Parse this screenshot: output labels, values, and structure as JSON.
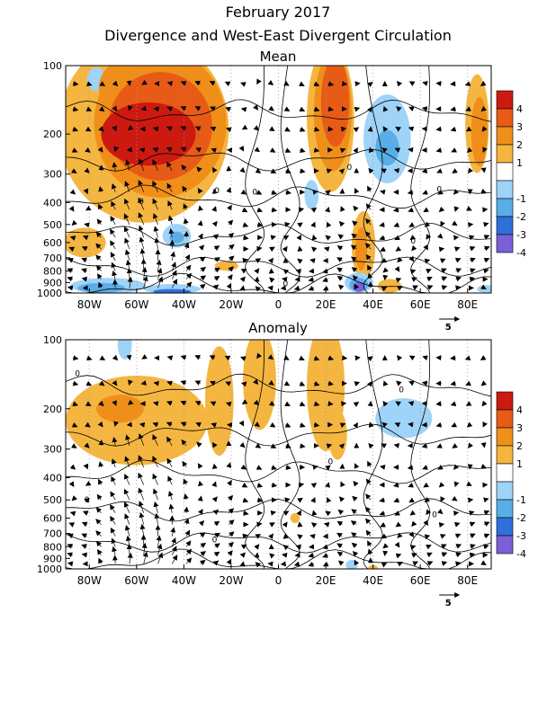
{
  "title": "February 2017",
  "subtitle": "Divergence and West-East Divergent Circulation",
  "colors": {
    "pos1": "#f4b640",
    "pos2": "#ef8f1a",
    "pos3": "#e75b17",
    "pos4": "#cc1a10",
    "neg1": "#9fd3f7",
    "neg2": "#5aaee8",
    "neg3": "#2f6fdc",
    "neg4": "#7b5fd8",
    "contour": "#000000",
    "arrow": "#000000",
    "grid": "#999999"
  },
  "chart_data": [
    {
      "type": "heatmap",
      "title": "Mean",
      "xlabel": "",
      "ylabel": "",
      "x_ticks": [
        "80W",
        "60W",
        "40W",
        "20W",
        "0",
        "20E",
        "40E",
        "60E",
        "80E"
      ],
      "x_tick_values": [
        -80,
        -60,
        -40,
        -20,
        0,
        20,
        40,
        60,
        80
      ],
      "xlim": [
        -90,
        90
      ],
      "y_ticks": [
        "100",
        "200",
        "300",
        "400",
        "500",
        "600",
        "700",
        "800",
        "900",
        "1000"
      ],
      "y_tick_values": [
        100,
        200,
        300,
        400,
        500,
        600,
        700,
        800,
        900,
        1000
      ],
      "ylim": [
        1000,
        100
      ],
      "y_scale": "log",
      "legend_labels": [
        "4",
        "3",
        "2",
        "1",
        "-1",
        "-2",
        "-3",
        "-4"
      ],
      "contour_labels": [
        {
          "text": "0",
          "x": -58,
          "p": 395
        },
        {
          "text": "0",
          "x": -26,
          "p": 355
        },
        {
          "text": "0",
          "x": -10,
          "p": 360
        },
        {
          "text": "0",
          "x": 30,
          "p": 280
        },
        {
          "text": "0",
          "x": 57,
          "p": 590
        },
        {
          "text": "0",
          "x": 68,
          "p": 350
        },
        {
          "text": "0",
          "x": 3,
          "p": 910
        }
      ],
      "reference_vector": {
        "label": "5",
        "x": 68,
        "magnitude": 5
      },
      "blobs": [
        {
          "level": 1,
          "x": -57,
          "p": 190,
          "rx": 36,
          "rp": 0.95
        },
        {
          "level": 2,
          "x": -50,
          "p": 180,
          "rx": 28,
          "rp": 0.75
        },
        {
          "level": 3,
          "x": -50,
          "p": 185,
          "rx": 22,
          "rp": 0.55
        },
        {
          "level": 4,
          "x": -55,
          "p": 200,
          "rx": 20,
          "rp": 0.32
        },
        {
          "level": 1,
          "x": -76,
          "p": 130,
          "rx": 6,
          "rp": 0.28
        },
        {
          "level": 2,
          "x": -62,
          "p": 125,
          "rx": 14,
          "rp": 0.3
        },
        {
          "level": 1,
          "x": 22,
          "p": 170,
          "rx": 10,
          "rp": 0.75
        },
        {
          "level": 2,
          "x": 23,
          "p": 160,
          "rx": 8,
          "rp": 0.6
        },
        {
          "level": 3,
          "x": 24,
          "p": 145,
          "rx": 6,
          "rp": 0.45
        },
        {
          "level": 1,
          "x": 84,
          "p": 180,
          "rx": 5,
          "rp": 0.5
        },
        {
          "level": 2,
          "x": 85,
          "p": 195,
          "rx": 3.5,
          "rp": 0.35
        },
        {
          "level": -1,
          "x": 46,
          "p": 210,
          "rx": 10,
          "rp": 0.45
        },
        {
          "level": -2,
          "x": 46,
          "p": 230,
          "rx": 5,
          "rp": 0.18
        },
        {
          "level": -1,
          "x": -77,
          "p": 115,
          "rx": 4,
          "rp": 0.12
        },
        {
          "level": -1,
          "x": 14,
          "p": 370,
          "rx": 3,
          "rp": 0.15
        },
        {
          "level": -1,
          "x": -43,
          "p": 560,
          "rx": 6,
          "rp": 0.12
        },
        {
          "level": -2,
          "x": -43,
          "p": 570,
          "rx": 3,
          "rp": 0.06
        },
        {
          "level": 1,
          "x": -82,
          "p": 600,
          "rx": 9,
          "rp": 0.15
        },
        {
          "level": 1,
          "x": 36,
          "p": 620,
          "rx": 5,
          "rp": 0.35
        },
        {
          "level": 2,
          "x": 35,
          "p": 640,
          "rx": 2.5,
          "rp": 0.22
        },
        {
          "level": 1,
          "x": -22,
          "p": 760,
          "rx": 5,
          "rp": 0.05
        },
        {
          "level": 1,
          "x": 47,
          "p": 930,
          "rx": 5,
          "rp": 0.07
        },
        {
          "level": -1,
          "x": -72,
          "p": 930,
          "rx": 16,
          "rp": 0.08
        },
        {
          "level": -2,
          "x": -75,
          "p": 950,
          "rx": 10,
          "rp": 0.05
        },
        {
          "level": -1,
          "x": -45,
          "p": 960,
          "rx": 12,
          "rp": 0.05
        },
        {
          "level": -3,
          "x": -45,
          "p": 985,
          "rx": 8,
          "rp": 0.025
        },
        {
          "level": -1,
          "x": 34,
          "p": 900,
          "rx": 6,
          "rp": 0.1
        },
        {
          "level": -2,
          "x": 34,
          "p": 920,
          "rx": 4,
          "rp": 0.07
        },
        {
          "level": -4,
          "x": 34,
          "p": 940,
          "rx": 2.5,
          "rp": 0.05
        },
        {
          "level": -1,
          "x": 88,
          "p": 960,
          "rx": 4,
          "rp": 0.04
        }
      ]
    },
    {
      "type": "heatmap",
      "title": "Anomaly",
      "xlabel": "",
      "ylabel": "",
      "x_ticks": [
        "80W",
        "60W",
        "40W",
        "20W",
        "0",
        "20E",
        "40E",
        "60E",
        "80E"
      ],
      "x_tick_values": [
        -80,
        -60,
        -40,
        -20,
        0,
        20,
        40,
        60,
        80
      ],
      "xlim": [
        -90,
        90
      ],
      "y_ticks": [
        "100",
        "200",
        "300",
        "400",
        "500",
        "600",
        "700",
        "800",
        "900",
        "1000"
      ],
      "y_tick_values": [
        100,
        200,
        300,
        400,
        500,
        600,
        700,
        800,
        900,
        1000
      ],
      "ylim": [
        1000,
        100
      ],
      "y_scale": "log",
      "legend_labels": [
        "4",
        "3",
        "2",
        "1",
        "-1",
        "-2",
        "-3",
        "-4"
      ],
      "contour_labels": [
        {
          "text": "0",
          "x": -85,
          "p": 140
        },
        {
          "text": "0",
          "x": 52,
          "p": 165
        },
        {
          "text": "0",
          "x": 22,
          "p": 340
        },
        {
          "text": "0",
          "x": -81,
          "p": 500
        },
        {
          "text": "0",
          "x": 66,
          "p": 580
        },
        {
          "text": "0",
          "x": -27,
          "p": 745
        }
      ],
      "reference_vector": {
        "label": "5",
        "x": 68,
        "magnitude": 5
      },
      "blobs": [
        {
          "level": 1,
          "x": -60,
          "p": 225,
          "rx": 30,
          "rp": 0.45
        },
        {
          "level": 2,
          "x": -67,
          "p": 200,
          "rx": 10,
          "rp": 0.14
        },
        {
          "level": 1,
          "x": -25,
          "p": 185,
          "rx": 6,
          "rp": 0.55
        },
        {
          "level": 1,
          "x": -8,
          "p": 150,
          "rx": 7,
          "rp": 0.5
        },
        {
          "level": 1,
          "x": 20,
          "p": 160,
          "rx": 8,
          "rp": 0.65
        },
        {
          "level": 1,
          "x": 25,
          "p": 260,
          "rx": 4,
          "rp": 0.25
        },
        {
          "level": -1,
          "x": 53,
          "p": 220,
          "rx": 12,
          "rp": 0.2
        },
        {
          "level": -1,
          "x": -65,
          "p": 105,
          "rx": 3,
          "rp": 0.15
        },
        {
          "level": 1,
          "x": 7,
          "p": 600,
          "rx": 2,
          "rp": 0.05
        },
        {
          "level": 1,
          "x": 40,
          "p": 990,
          "rx": 2,
          "rp": 0.03
        },
        {
          "level": -1,
          "x": 31,
          "p": 960,
          "rx": 2.5,
          "rp": 0.05
        }
      ]
    }
  ]
}
